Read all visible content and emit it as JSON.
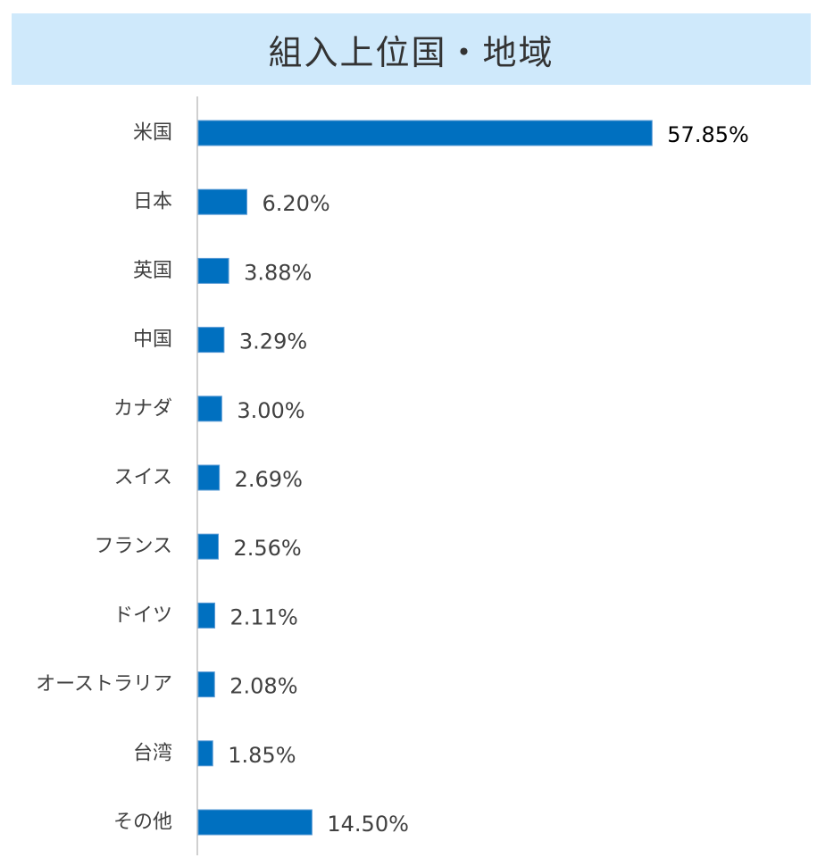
{
  "header": {
    "title": "組入上位国・地域"
  },
  "colors": {
    "banner_bg": "#cfe9fb",
    "bar_fill": "#0070c0",
    "bar_stroke": "#5b9bd5",
    "axis": "#c0c0c0",
    "value_text_first": "#000000",
    "value_text": "#404040"
  },
  "chart_data": {
    "type": "bar",
    "orientation": "horizontal",
    "title": "組入上位国・地域",
    "xlabel": "",
    "ylabel": "",
    "xlim": [
      0,
      58.5
    ],
    "grid": false,
    "categories": [
      "米国",
      "日本",
      "英国",
      "中国",
      "カナダ",
      "スイス",
      "フランス",
      "ドイツ",
      "オーストラリア",
      "台湾",
      "その他"
    ],
    "values": [
      57.85,
      6.2,
      3.88,
      3.29,
      3.0,
      2.69,
      2.56,
      2.11,
      2.08,
      1.85,
      14.5
    ],
    "value_labels": [
      "57.85%",
      "6.20%",
      "3.88%",
      "3.29%",
      "3.00%",
      "2.69%",
      "2.56%",
      "2.11%",
      "2.08%",
      "1.85%",
      "14.50%"
    ]
  }
}
